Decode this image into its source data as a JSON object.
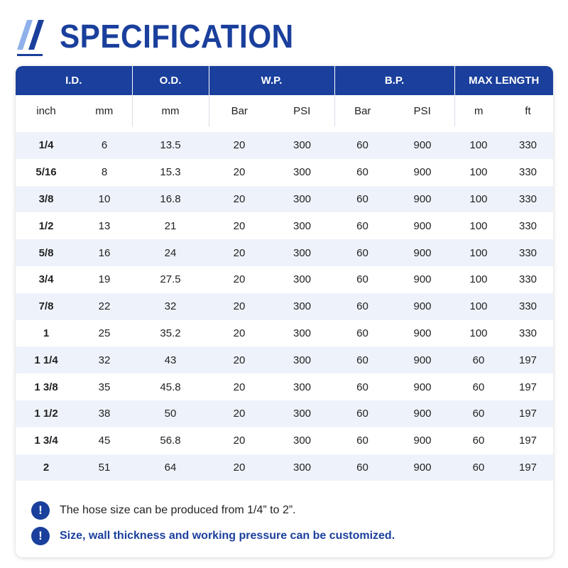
{
  "header": {
    "title": "SPECIFICATION"
  },
  "table": {
    "groups": [
      {
        "label": "I.D.",
        "span": 2
      },
      {
        "label": "O.D.",
        "span": 1
      },
      {
        "label": "W.P.",
        "span": 2
      },
      {
        "label": "B.P.",
        "span": 2
      },
      {
        "label": "MAX LENGTH",
        "span": 2
      }
    ],
    "units": [
      "inch",
      "mm",
      "mm",
      "Bar",
      "PSI",
      "Bar",
      "PSI",
      "m",
      "ft"
    ],
    "rows": [
      [
        "1/4",
        "6",
        "13.5",
        "20",
        "300",
        "60",
        "900",
        "100",
        "330"
      ],
      [
        "5/16",
        "8",
        "15.3",
        "20",
        "300",
        "60",
        "900",
        "100",
        "330"
      ],
      [
        "3/8",
        "10",
        "16.8",
        "20",
        "300",
        "60",
        "900",
        "100",
        "330"
      ],
      [
        "1/2",
        "13",
        "21",
        "20",
        "300",
        "60",
        "900",
        "100",
        "330"
      ],
      [
        "5/8",
        "16",
        "24",
        "20",
        "300",
        "60",
        "900",
        "100",
        "330"
      ],
      [
        "3/4",
        "19",
        "27.5",
        "20",
        "300",
        "60",
        "900",
        "100",
        "330"
      ],
      [
        "7/8",
        "22",
        "32",
        "20",
        "300",
        "60",
        "900",
        "100",
        "330"
      ],
      [
        "1",
        "25",
        "35.2",
        "20",
        "300",
        "60",
        "900",
        "100",
        "330"
      ],
      [
        "1 1/4",
        "32",
        "43",
        "20",
        "300",
        "60",
        "900",
        "60",
        "197"
      ],
      [
        "1 3/8",
        "35",
        "45.8",
        "20",
        "300",
        "60",
        "900",
        "60",
        "197"
      ],
      [
        "1 1/2",
        "38",
        "50",
        "20",
        "300",
        "60",
        "900",
        "60",
        "197"
      ],
      [
        "1 3/4",
        "45",
        "56.8",
        "20",
        "300",
        "60",
        "900",
        "60",
        "197"
      ],
      [
        "2",
        "51",
        "64",
        "20",
        "300",
        "60",
        "900",
        "60",
        "197"
      ]
    ]
  },
  "notes": [
    {
      "icon": "!",
      "text": "The hose size can be produced from 1/4” to 2”."
    },
    {
      "icon": "!",
      "text": "Size, wall thickness and working pressure can be customized."
    }
  ],
  "colors": {
    "brand": "#1a3f9c",
    "stripe": "#eef3fb",
    "slash_light": "#8fb0ea"
  }
}
